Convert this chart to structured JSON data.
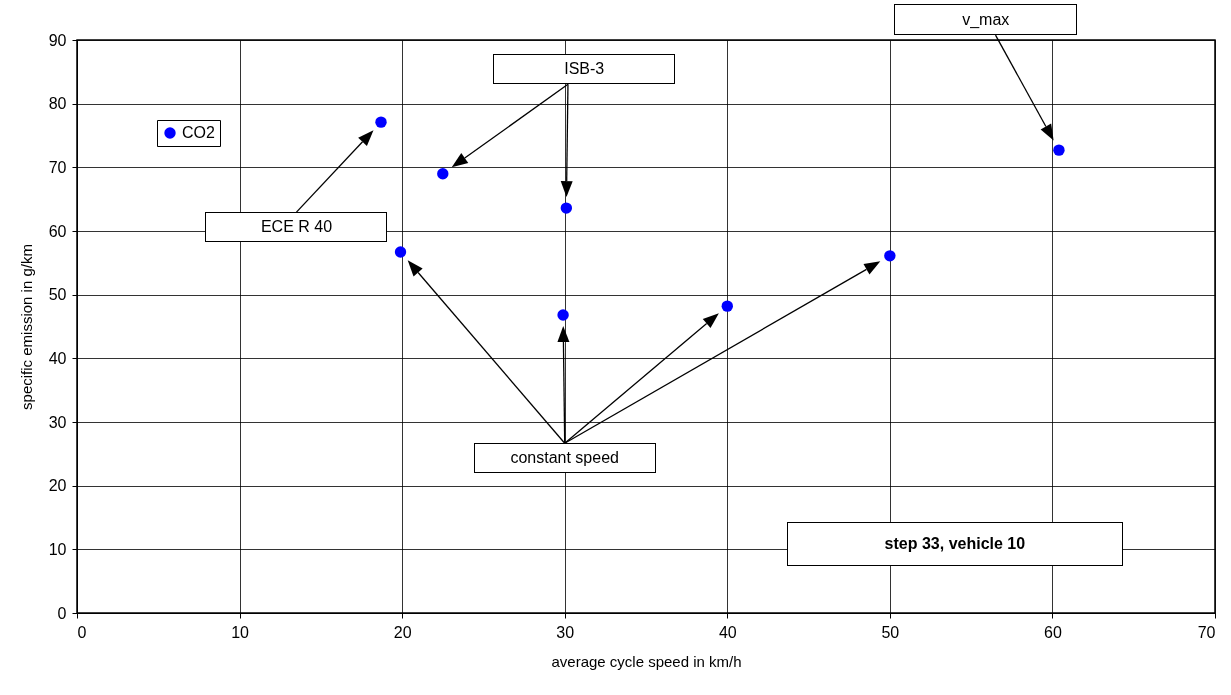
{
  "chart_data": {
    "type": "scatter",
    "xlabel": "average cycle speed in km/h",
    "ylabel": "specific emission in g/km",
    "x": [
      18.7,
      22.5,
      30.1,
      19.9,
      29.9,
      40,
      50,
      60.4
    ],
    "series": [
      {
        "name": "CO2",
        "color": "#0000ff",
        "values": [
          77.1,
          69.0,
          63.6,
          56.7,
          46.8,
          48.2,
          56.1,
          72.7
        ]
      }
    ],
    "xlim": [
      0,
      70
    ],
    "xticks": [
      0,
      10,
      20,
      30,
      40,
      50,
      60,
      70
    ],
    "ylim": [
      0,
      90
    ],
    "yticks": [
      0,
      10,
      20,
      30,
      40,
      50,
      60,
      70,
      80,
      90
    ],
    "grid": true,
    "legend": "top left",
    "marker": "circle",
    "annotations": [
      "ECE R 40",
      "ISB-3",
      "v_max",
      "constant speed",
      "step 33, vehicle 10"
    ]
  }
}
